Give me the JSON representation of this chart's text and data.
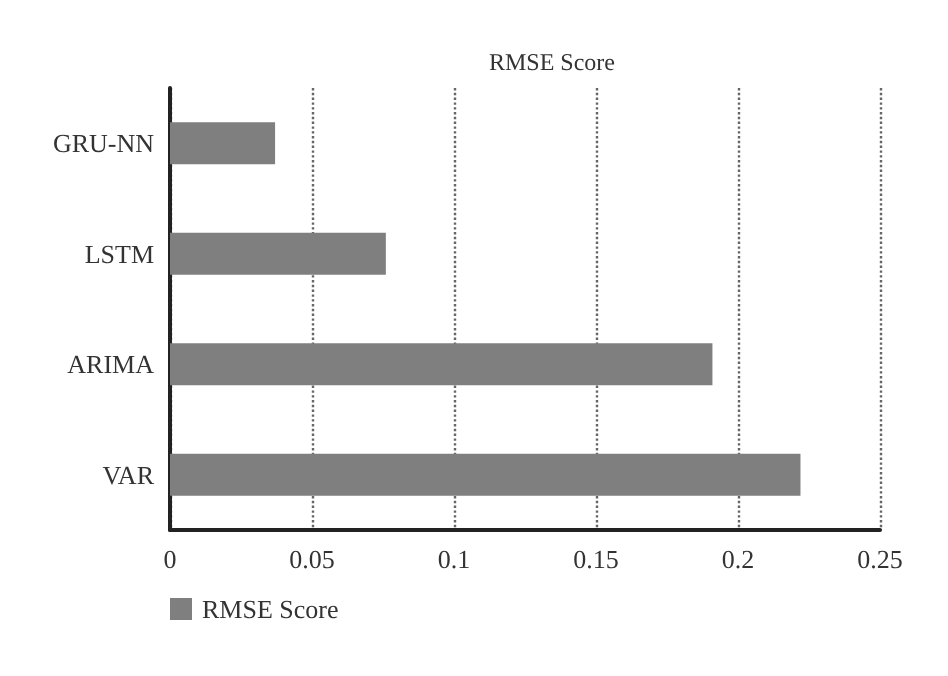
{
  "chart_data": {
    "type": "bar",
    "title": "RMSE Score",
    "orientation": "horizontal",
    "categories": [
      "GRU-NN",
      "LSTM",
      "ARIMA",
      "VAR"
    ],
    "series": [
      {
        "name": "RMSE Score",
        "color": "#7f7f7f",
        "values": [
          0.037,
          0.076,
          0.191,
          0.222
        ]
      }
    ],
    "xlim": [
      0,
      0.25
    ],
    "xticks": [
      0,
      0.05,
      0.1,
      0.15,
      0.2,
      0.25
    ],
    "grid": "x",
    "legend": "bottom left"
  }
}
